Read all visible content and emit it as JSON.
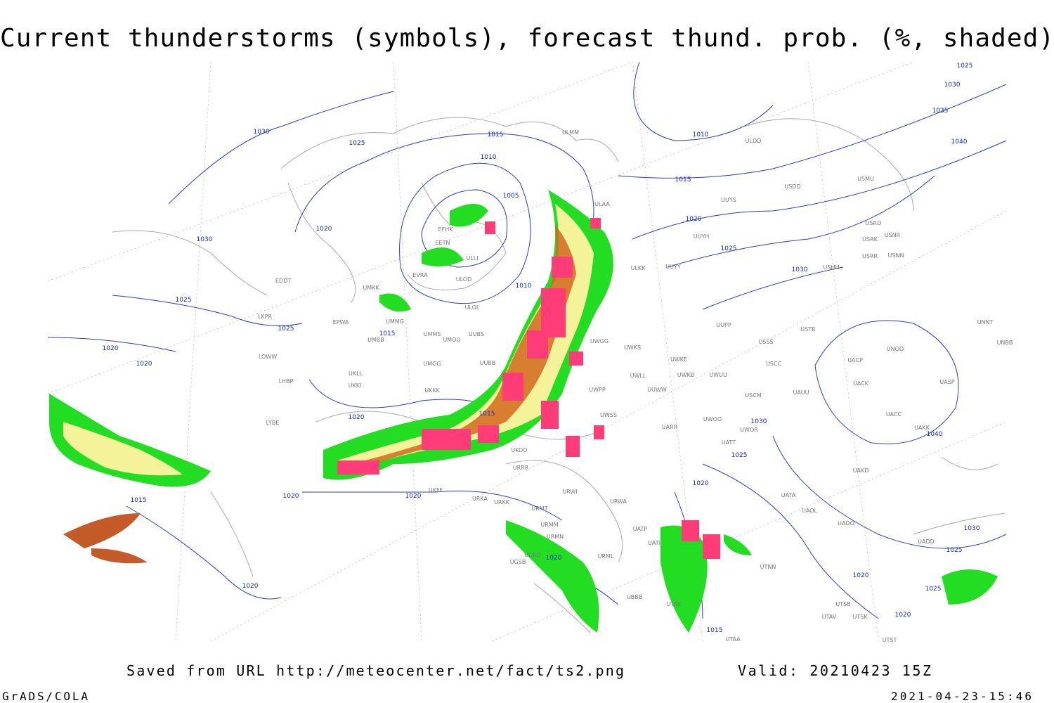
{
  "header": {
    "title": "Current thunderstorms (symbols), forecast thund. prob. (%, shaded)"
  },
  "footer": {
    "saved": "Saved from URL http://meteocenter.net/fact/ts2.png",
    "valid": "Valid: 20210423 15Z",
    "software": "GrADS/COLA",
    "timestamp": "2021-04-23-15:46"
  },
  "isobar_labels": [
    "1030",
    "1025",
    "1015",
    "1010",
    "1005",
    "1010",
    "1015",
    "1020",
    "1025",
    "1030",
    "1025",
    "1030",
    "1035",
    "1040",
    "1030",
    "1020",
    "1025",
    "1025",
    "1015",
    "1010",
    "1020",
    "1020",
    "1015",
    "1020",
    "1030",
    "1040",
    "1025",
    "1020",
    "1020",
    "1020",
    "1015",
    "1020",
    "1020",
    "1030",
    "1025",
    "1020",
    "1025",
    "1020",
    "1015"
  ],
  "stations": [
    "ULMM",
    "ULDD",
    "USDD",
    "USMU",
    "ULAA",
    "UUYS",
    "USRO",
    "USRK",
    "USNR",
    "UUYH",
    "USRR",
    "USNN",
    "ULKK",
    "UUYY",
    "USHH",
    "EFHK",
    "EETN",
    "ULLI",
    "EVRA",
    "ULOD",
    "UMKK",
    "ULOL",
    "EDDT",
    "UMMG",
    "EPWA",
    "LKPR",
    "UMMS",
    "UMOO",
    "UUBS",
    "UMBB",
    "UWGG",
    "UWKS",
    "UUPP",
    "USTR",
    "USSS",
    "UNNT",
    "UNBB",
    "UNOO",
    "LOWW",
    "UMGG",
    "UUBB",
    "UWKE",
    "USCC",
    "UACP",
    "LHBP",
    "UKLL",
    "UKKI",
    "UKKK",
    "UWLL",
    "UWKB",
    "UWUU",
    "UUWW",
    "UACK",
    "UASP",
    "USCM",
    "UAUU",
    "UWPP",
    "LYBE",
    "UWSS",
    "UWOO",
    "UWOR",
    "UACC",
    "UAKK",
    "UARR",
    "UATT",
    "UKOO",
    "UAKD",
    "URRR",
    "UKFF",
    "URWI",
    "URKA",
    "URKK",
    "URWA",
    "UATA",
    "UAOL",
    "URMT",
    "UAOO",
    "URMM",
    "UATP",
    "URMN",
    "UATI",
    "UADD",
    "UTNN",
    "UGKO",
    "UGSB",
    "URML",
    "UBBB",
    "UTAK",
    "UTSB",
    "UTAV",
    "UTSK",
    "UTAA",
    "UTST"
  ]
}
